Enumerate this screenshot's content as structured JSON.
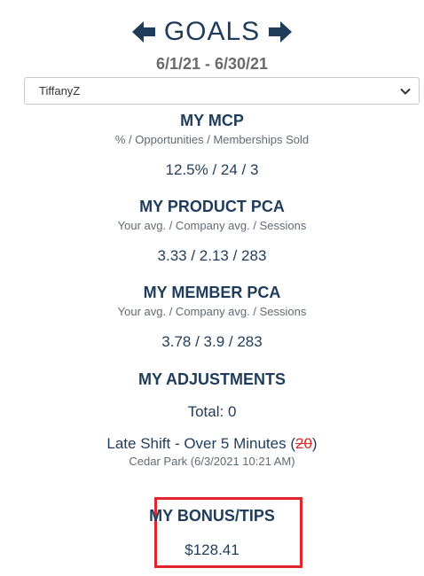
{
  "header": {
    "title": "GOALS",
    "date_range": "6/1/21 - 6/30/21"
  },
  "user_select": {
    "value": "TiffanyZ"
  },
  "mcp": {
    "title": "MY MCP",
    "subtitle": "% / Opportunities / Memberships Sold",
    "value": "12.5% / 24 / 3"
  },
  "product_pca": {
    "title": "MY PRODUCT PCA",
    "subtitle": "Your avg. / Company avg. / Sessions",
    "value": "3.33 / 2.13 / 283"
  },
  "member_pca": {
    "title": "MY MEMBER PCA",
    "subtitle": "Your avg. / Company avg. / Sessions",
    "value": "3.78 / 3.9 / 283"
  },
  "adjustments": {
    "title": "MY ADJUSTMENTS",
    "total": "Total: 0",
    "items": [
      {
        "label": "Late Shift - Over 5 Minutes",
        "open_paren": "(",
        "amount": "20",
        "close_paren": ")",
        "detail": "Cedar Park (6/3/2021 10:21 AM)"
      }
    ]
  },
  "bonus": {
    "title": "MY BONUS/TIPS",
    "value": "$128.41"
  },
  "colors": {
    "primary": "#1f3c5a",
    "highlight_border": "#e0252f",
    "strike": "#d42a2a"
  },
  "icons": {
    "prev": "arrow-left-icon",
    "next": "arrow-right-icon",
    "select": "chevron-down-icon"
  }
}
